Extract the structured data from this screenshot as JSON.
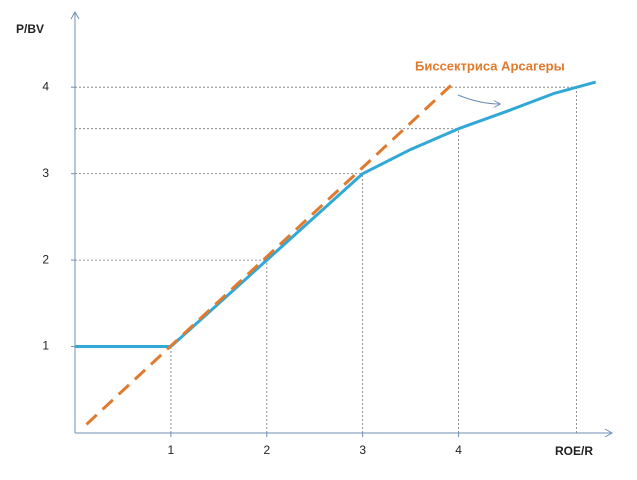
{
  "chart_data": {
    "type": "line",
    "y_label": "P/BV",
    "x_label": "ROE/R",
    "annotation": "Биссектриса Арсагеры",
    "xlim": [
      0,
      5.6
    ],
    "ylim": [
      0,
      4.87
    ],
    "xticks": [
      1,
      2,
      3,
      4
    ],
    "yticks": [
      1,
      2,
      3,
      4
    ],
    "series": [
      {
        "color": "#31a8d6",
        "dash": false,
        "x": [
          0,
          1,
          1.5,
          2,
          2.5,
          3,
          3.5,
          4,
          4.5,
          5,
          5.43
        ],
        "values": [
          1,
          1,
          1.5,
          2,
          2.5,
          3,
          3.28,
          3.52,
          3.72,
          3.93,
          4.06
        ]
      },
      {
        "color": "#e07a2e",
        "dash": true,
        "x": [
          0.12,
          3.92
        ],
        "values": [
          0.1,
          4.02
        ]
      }
    ],
    "guides": [
      {
        "x": 1,
        "y": 1
      },
      {
        "x": 2,
        "y": 2
      },
      {
        "x": 3,
        "y": 3
      },
      {
        "x": 4,
        "y": 3.52
      },
      {
        "x": 5.23,
        "y": 4
      }
    ]
  }
}
